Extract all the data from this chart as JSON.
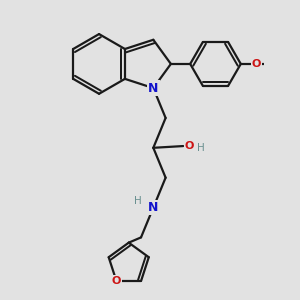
{
  "bg_color": "#e2e2e2",
  "bond_color": "#1a1a1a",
  "N_color": "#1414cc",
  "O_color": "#cc1414",
  "H_color": "#6a9090",
  "line_width": 1.6,
  "fig_size": [
    3.0,
    3.0
  ],
  "dpi": 100,
  "xlim": [
    -1.0,
    5.5
  ],
  "ylim": [
    -5.5,
    3.0
  ]
}
